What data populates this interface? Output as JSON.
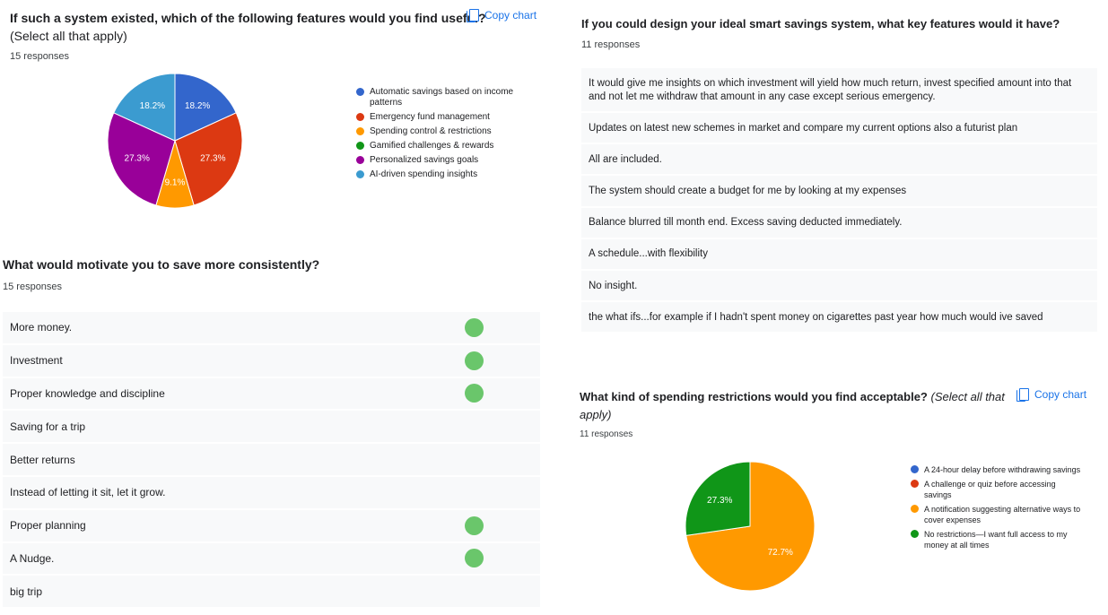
{
  "q1": {
    "title": "If such a system existed, which of the following features would you find useful?",
    "subtitle": "(Select all that apply)",
    "responses": "15 responses",
    "copy_label": "Copy chart"
  },
  "q2": {
    "title": "What would motivate you to save more consistently?",
    "responses": "15 responses",
    "items": [
      {
        "text": "More money.",
        "dot": true
      },
      {
        "text": "Investment",
        "dot": true
      },
      {
        "text": "Proper knowledge and discipline",
        "dot": true
      },
      {
        "text": "Saving for a trip",
        "dot": false
      },
      {
        "text": "Better returns",
        "dot": false
      },
      {
        "text": "Instead of letting it sit, let it grow.",
        "dot": false
      },
      {
        "text": "Proper planning",
        "dot": true
      },
      {
        "text": "A Nudge.",
        "dot": true
      },
      {
        "text": "big trip",
        "dot": false
      }
    ]
  },
  "q3": {
    "title": "If you could design your ideal smart savings system, what key features would it have?",
    "responses": "11 responses",
    "items": [
      "It would give me insights on which investment will yield how much return, invest specified amount into that and not let me withdraw that amount in any case except serious emergency.",
      "Updates on latest new schemes in market and compare my current options also a futurist plan",
      "All are included.",
      "The system should create a budget for me by looking at my expenses",
      "Balance blurred till month end. Excess saving deducted immediately.",
      "A schedule...with flexibility",
      "No insight.",
      "the what ifs...for example if I hadn't spent money on cigarettes past year how much would ive saved"
    ]
  },
  "q4": {
    "title": "What kind of spending restrictions would you find acceptable?",
    "title_note": "(Select all that",
    "title_note2": "apply)",
    "responses": "11 responses",
    "copy_label": "Copy chart"
  },
  "chart_data": [
    {
      "type": "pie",
      "categories": [
        "Automatic savings based on income patterns",
        "Emergency fund management",
        "Spending control & restrictions",
        "Gamified challenges & rewards",
        "Personalized savings goals",
        "AI-driven spending insights"
      ],
      "values": [
        18.2,
        27.3,
        9.1,
        0,
        27.3,
        18.2
      ],
      "labels": [
        "18.2%",
        "27.3%",
        "9.1%",
        "",
        "27.3%",
        "18.2%"
      ],
      "colors": [
        "#3366cc",
        "#dc3912",
        "#ff9900",
        "#109618",
        "#990099",
        "#3b9bd0"
      ],
      "legend": "right"
    },
    {
      "type": "pie",
      "categories": [
        "A 24-hour delay before withdrawing savings",
        "A challenge or quiz before accessing savings",
        "A notification suggesting alternative ways to cover expenses",
        "No restrictions—I want full access to my money at all times"
      ],
      "values": [
        0,
        0,
        72.7,
        27.3
      ],
      "labels": [
        "",
        "",
        "72.7%",
        "27.3%"
      ],
      "colors": [
        "#3366cc",
        "#dc3912",
        "#ff9900",
        "#109618"
      ],
      "legend": "right"
    }
  ]
}
